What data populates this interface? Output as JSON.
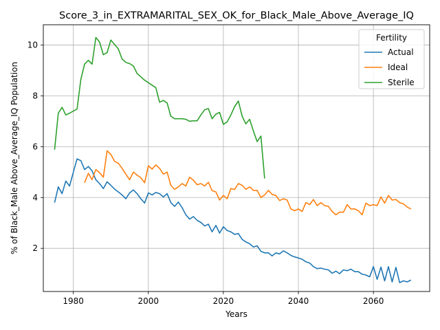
{
  "chart_data": {
    "type": "line",
    "title": "Score_3_in_EXTRAMARITAL_SEX_OK_for_Black_Male_Above_Average_IQ",
    "xlabel": "Years",
    "ylabel": "% of Black_Male Above_Average_IQ Population",
    "xlim": [
      1972,
      2075
    ],
    "ylim": [
      0.3,
      10.8
    ],
    "xticks": [
      1980,
      2000,
      2020,
      2040,
      2060
    ],
    "yticks": [
      2,
      4,
      6,
      8,
      10
    ],
    "grid": true,
    "legend": {
      "title": "Fertility",
      "position": "top-right"
    },
    "series": [
      {
        "name": "Actual",
        "color": "#1f77b4",
        "x": [
          1975,
          1976,
          1977,
          1978,
          1979,
          1980,
          1981,
          1982,
          1983,
          1984,
          1985,
          1986,
          1987,
          1988,
          1989,
          1990,
          1991,
          1992,
          1993,
          1994,
          1995,
          1996,
          1997,
          1998,
          1999,
          2000,
          2001,
          2002,
          2003,
          2004,
          2005,
          2006,
          2007,
          2008,
          2009,
          2010,
          2011,
          2012,
          2013,
          2014,
          2015,
          2016,
          2017,
          2018,
          2019,
          2020,
          2021,
          2022,
          2023,
          2024,
          2025,
          2026,
          2027,
          2028,
          2029,
          2030,
          2031,
          2032,
          2033,
          2034,
          2035,
          2036,
          2037,
          2038,
          2039,
          2040,
          2041,
          2042,
          2043,
          2044,
          2045,
          2046,
          2047,
          2048,
          2049,
          2050,
          2051,
          2052,
          2053,
          2054,
          2055,
          2056,
          2057,
          2058,
          2059,
          2060,
          2061,
          2062,
          2063,
          2064,
          2065,
          2066,
          2067,
          2068,
          2069,
          2070
        ],
        "y": [
          3.8,
          4.42,
          4.15,
          4.65,
          4.45,
          5.0,
          5.52,
          5.45,
          5.1,
          5.22,
          5.05,
          4.7,
          4.55,
          4.35,
          4.62,
          4.48,
          4.33,
          4.22,
          4.1,
          3.95,
          4.18,
          4.3,
          4.15,
          3.95,
          3.78,
          4.18,
          4.1,
          4.2,
          4.15,
          4.02,
          4.15,
          3.8,
          3.65,
          3.82,
          3.6,
          3.32,
          3.15,
          3.25,
          3.1,
          3.02,
          2.88,
          2.95,
          2.65,
          2.9,
          2.6,
          2.85,
          2.7,
          2.65,
          2.55,
          2.58,
          2.35,
          2.25,
          2.18,
          2.05,
          2.1,
          1.88,
          1.82,
          1.82,
          1.7,
          1.82,
          1.78,
          1.9,
          1.82,
          1.72,
          1.66,
          1.62,
          1.57,
          1.47,
          1.42,
          1.28,
          1.2,
          1.22,
          1.18,
          1.15,
          1.02,
          1.1,
          1.0,
          1.15,
          1.12,
          1.18,
          1.08,
          1.08,
          0.98,
          0.95,
          0.88,
          1.28,
          0.78,
          1.26,
          0.72,
          1.28,
          0.68,
          1.25,
          0.65,
          0.72,
          0.68,
          0.75
        ]
      },
      {
        "name": "Ideal",
        "color": "#ff7f0e",
        "x": [
          1983,
          1984,
          1985,
          1986,
          1987,
          1988,
          1989,
          1990,
          1991,
          1992,
          1993,
          1994,
          1995,
          1996,
          1997,
          1998,
          1999,
          2000,
          2001,
          2002,
          2003,
          2004,
          2005,
          2006,
          2007,
          2008,
          2009,
          2010,
          2011,
          2012,
          2013,
          2014,
          2015,
          2016,
          2017,
          2018,
          2019,
          2020,
          2021,
          2022,
          2023,
          2024,
          2025,
          2026,
          2027,
          2028,
          2029,
          2030,
          2031,
          2032,
          2033,
          2034,
          2035,
          2036,
          2037,
          2038,
          2039,
          2040,
          2041,
          2042,
          2043,
          2044,
          2045,
          2046,
          2047,
          2048,
          2049,
          2050,
          2051,
          2052,
          2053,
          2054,
          2055,
          2056,
          2057,
          2058,
          2059,
          2060,
          2061,
          2062,
          2063,
          2064,
          2065,
          2066,
          2067,
          2068,
          2069,
          2070
        ],
        "y": [
          4.58,
          4.95,
          4.7,
          5.1,
          4.98,
          4.8,
          5.84,
          5.7,
          5.42,
          5.35,
          5.15,
          4.92,
          4.7,
          5.0,
          4.88,
          4.78,
          4.58,
          5.25,
          5.12,
          5.28,
          5.15,
          4.92,
          5.0,
          4.48,
          4.32,
          4.42,
          4.55,
          4.45,
          4.8,
          4.68,
          4.5,
          4.55,
          4.45,
          4.6,
          4.27,
          4.22,
          3.9,
          4.08,
          3.95,
          4.35,
          4.32,
          4.55,
          4.48,
          4.32,
          4.42,
          4.28,
          4.28,
          4.0,
          4.1,
          4.28,
          4.12,
          4.08,
          3.88,
          3.95,
          3.9,
          3.55,
          3.48,
          3.55,
          3.45,
          3.8,
          3.72,
          3.92,
          3.68,
          3.8,
          3.68,
          3.65,
          3.45,
          3.32,
          3.42,
          3.42,
          3.72,
          3.55,
          3.55,
          3.48,
          3.32,
          3.78,
          3.68,
          3.72,
          3.68,
          4.02,
          3.78,
          4.08,
          3.9,
          3.92,
          3.8,
          3.75,
          3.62,
          3.55
        ]
      },
      {
        "name": "Sterile",
        "color": "#2ca02c",
        "x": [
          1975,
          1976,
          1977,
          1978,
          1979,
          1980,
          1981,
          1982,
          1983,
          1984,
          1985,
          1986,
          1987,
          1988,
          1989,
          1990,
          1991,
          1992,
          1993,
          1994,
          1995,
          1996,
          1997,
          1998,
          1999,
          2000,
          2001,
          2002,
          2003,
          2004,
          2005,
          2006,
          2007,
          2008,
          2009,
          2010,
          2011,
          2012,
          2013,
          2014,
          2015,
          2016,
          2017,
          2018,
          2019,
          2020,
          2021,
          2022,
          2023,
          2024,
          2025,
          2026,
          2027,
          2028,
          2029,
          2030,
          2031
        ],
        "y": [
          5.88,
          7.32,
          7.55,
          7.25,
          7.32,
          7.4,
          7.48,
          8.65,
          9.25,
          9.4,
          9.25,
          10.3,
          10.12,
          9.62,
          9.7,
          10.2,
          10.02,
          9.85,
          9.45,
          9.32,
          9.27,
          9.18,
          8.88,
          8.75,
          8.62,
          8.52,
          8.42,
          8.32,
          7.75,
          7.82,
          7.72,
          7.2,
          7.1,
          7.1,
          7.1,
          7.08,
          7.0,
          7.02,
          7.02,
          7.25,
          7.45,
          7.5,
          7.1,
          7.28,
          7.35,
          6.88,
          6.98,
          7.25,
          7.58,
          7.8,
          7.2,
          6.9,
          7.08,
          6.62,
          6.2,
          6.42,
          4.75
        ]
      }
    ]
  }
}
